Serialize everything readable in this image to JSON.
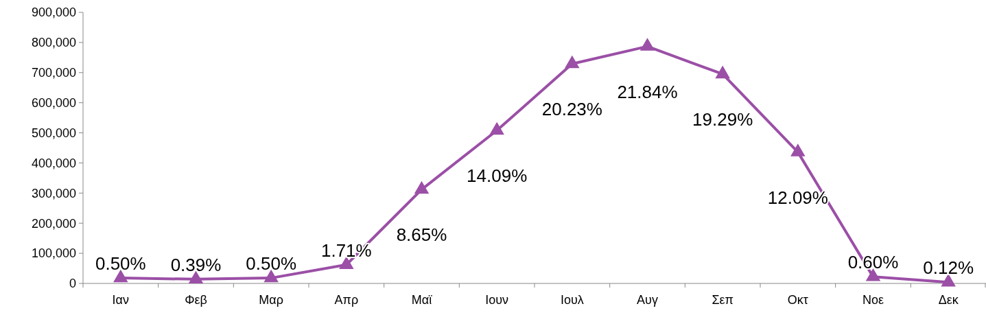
{
  "chart_data": {
    "type": "line",
    "categories": [
      "Ιαν",
      "Φεβ",
      "Μαρ",
      "Απρ",
      "Μαϊ",
      "Ιουν",
      "Ιουλ",
      "Αυγ",
      "Σεπ",
      "Οκτ",
      "Νοε",
      "Δεκ"
    ],
    "series": [
      {
        "color": "#9b4fa6",
        "values": [
          18000,
          14000,
          18000,
          62000,
          312000,
          508000,
          729000,
          787000,
          695000,
          436000,
          22000,
          4000
        ]
      }
    ],
    "annotations": [
      {
        "text": "0.50%",
        "x": "Ιαν",
        "y": 18000
      },
      {
        "text": "0.39%",
        "x": "Φεβ",
        "y": 14000
      },
      {
        "text": "0.50%",
        "x": "Μαρ",
        "y": 18000
      },
      {
        "text": "1.71%",
        "x": "Απρ",
        "y": 62000
      },
      {
        "text": "8.65%",
        "x": "Μαϊ",
        "y": 312000
      },
      {
        "text": "14.09%",
        "x": "Ιουν",
        "y": 508000
      },
      {
        "text": "20.23%",
        "x": "Ιουλ",
        "y": 729000
      },
      {
        "text": "21.84%",
        "x": "Αυγ",
        "y": 787000
      },
      {
        "text": "19.29%",
        "x": "Σεπ",
        "y": 695000
      },
      {
        "text": "12.09%",
        "x": "Οκτ",
        "y": 436000
      },
      {
        "text": "0.60%",
        "x": "Νοε",
        "y": 22000
      },
      {
        "text": "0.12%",
        "x": "Δεκ",
        "y": 4000
      }
    ],
    "ylim": [
      0,
      900000
    ],
    "yticks": [
      {
        "value": 0,
        "label": "0"
      },
      {
        "value": 100000,
        "label": "100,000"
      },
      {
        "value": 200000,
        "label": "200,000"
      },
      {
        "value": 300000,
        "label": "300,000"
      },
      {
        "value": 400000,
        "label": "400,000"
      },
      {
        "value": 500000,
        "label": "500,000"
      },
      {
        "value": 600000,
        "label": "600,000"
      },
      {
        "value": 700000,
        "label": "700,000"
      },
      {
        "value": 800000,
        "label": "800,000"
      },
      {
        "value": 900000,
        "label": "900,000"
      }
    ],
    "grid": false,
    "marker": "triangle",
    "line_style": "solid"
  }
}
